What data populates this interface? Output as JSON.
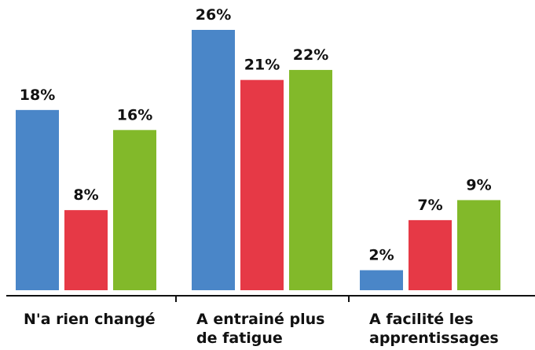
{
  "chart_data": {
    "type": "bar",
    "categories": [
      [
        "N'a rien changé"
      ],
      [
        "A entrainé plus",
        "de fatigue"
      ],
      [
        "A facilité les",
        "apprentissages"
      ]
    ],
    "series": [
      {
        "values": [
          18,
          26,
          2
        ],
        "color": "#4a86c8"
      },
      {
        "values": [
          8,
          21,
          7
        ],
        "color": "#e63946"
      },
      {
        "values": [
          16,
          22,
          9
        ],
        "color": "#82b92a"
      }
    ],
    "value_suffix": "%",
    "ylim": [
      0,
      26
    ],
    "title": "",
    "xlabel": "",
    "ylabel": "",
    "grid": false,
    "legend": "none",
    "axis_color": "#111111"
  }
}
